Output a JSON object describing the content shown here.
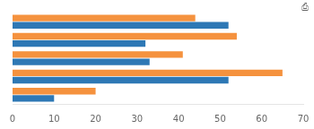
{
  "chart_data": {
    "type": "bar",
    "orientation": "horizontal",
    "categories": [
      null,
      null,
      null,
      null,
      null
    ],
    "series": [
      {
        "color": "#f5923e",
        "values": [
          44,
          54,
          41,
          65,
          20
        ]
      },
      {
        "color": "#2e78b5",
        "values": [
          52,
          32,
          33,
          52,
          10
        ]
      }
    ],
    "xlim": [
      0,
      70
    ],
    "xticks": [
      0,
      10,
      20,
      30,
      40,
      50,
      60,
      70
    ],
    "grid": false,
    "tick_labels": "x",
    "annotations": [
      "⎙"
    ]
  }
}
